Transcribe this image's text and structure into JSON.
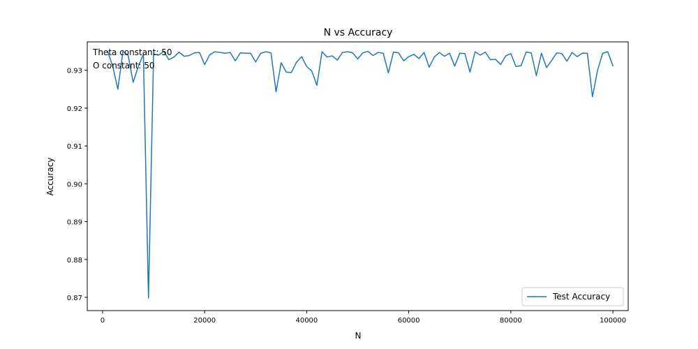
{
  "chart_data": {
    "type": "line",
    "title": "N vs Accuracy",
    "xlabel": "N",
    "ylabel": "Accuracy",
    "xlim": [
      -3000,
      103000
    ],
    "ylim": [
      0.8665,
      0.9375
    ],
    "xticks": [
      0,
      20000,
      40000,
      60000,
      80000,
      100000
    ],
    "yticks": [
      0.87,
      0.88,
      0.89,
      0.9,
      0.91,
      0.92,
      0.93
    ],
    "xtick_labels": [
      "0",
      "20000",
      "40000",
      "60000",
      "80000",
      "100000"
    ],
    "ytick_labels": [
      "0.87",
      "0.88",
      "0.89",
      "0.90",
      "0.91",
      "0.92",
      "0.93"
    ],
    "grid": false,
    "legend_position": "lower-right",
    "annotations": [
      "Theta constant: 50",
      "O constant: 50"
    ],
    "series": [
      {
        "name": "Test Accuracy",
        "color": "#1f77b4",
        "x": [
          1000,
          2000,
          3000,
          4000,
          5000,
          6000,
          7000,
          8000,
          9000,
          10000,
          11000,
          12000,
          13000,
          14000,
          15000,
          16000,
          17000,
          18000,
          19000,
          20000,
          21000,
          22000,
          23000,
          24000,
          25000,
          26000,
          27000,
          28000,
          29000,
          30000,
          31000,
          32000,
          33000,
          34000,
          35000,
          36000,
          37000,
          38000,
          39000,
          40000,
          41000,
          42000,
          43000,
          44000,
          45000,
          46000,
          47000,
          48000,
          49000,
          50000,
          51000,
          52000,
          53000,
          54000,
          55000,
          56000,
          57000,
          58000,
          59000,
          60000,
          61000,
          62000,
          63000,
          64000,
          65000,
          66000,
          67000,
          68000,
          69000,
          70000,
          71000,
          72000,
          73000,
          74000,
          75000,
          76000,
          77000,
          78000,
          79000,
          80000,
          81000,
          82000,
          83000,
          84000,
          85000,
          86000,
          87000,
          88000,
          89000,
          90000,
          91000,
          92000,
          93000,
          94000,
          95000,
          96000,
          97000,
          98000,
          99000,
          100000
        ],
        "y": [
          0.935,
          0.931,
          0.925,
          0.935,
          0.934,
          0.9268,
          0.931,
          0.9342,
          0.8698,
          0.9343,
          0.934,
          0.935,
          0.9328,
          0.9335,
          0.9348,
          0.9337,
          0.9339,
          0.9346,
          0.9347,
          0.9315,
          0.9341,
          0.9349,
          0.9347,
          0.9345,
          0.9347,
          0.9325,
          0.9346,
          0.9345,
          0.9345,
          0.9322,
          0.9345,
          0.9349,
          0.9346,
          0.9243,
          0.932,
          0.9295,
          0.9294,
          0.9321,
          0.9336,
          0.931,
          0.9298,
          0.926,
          0.9349,
          0.9335,
          0.9338,
          0.9327,
          0.9347,
          0.9349,
          0.9346,
          0.933,
          0.9346,
          0.935,
          0.9339,
          0.9347,
          0.9345,
          0.9293,
          0.9348,
          0.9346,
          0.9325,
          0.9336,
          0.9342,
          0.9331,
          0.9347,
          0.9308,
          0.9335,
          0.9347,
          0.9337,
          0.9345,
          0.9311,
          0.9345,
          0.9344,
          0.9295,
          0.9349,
          0.934,
          0.9348,
          0.9328,
          0.9329,
          0.9315,
          0.9338,
          0.9344,
          0.931,
          0.9312,
          0.9348,
          0.9346,
          0.9286,
          0.9345,
          0.9307,
          0.9326,
          0.9346,
          0.9344,
          0.9324,
          0.9347,
          0.9336,
          0.9345,
          0.9345,
          0.923,
          0.93,
          0.9345,
          0.9349,
          0.9312
        ]
      }
    ]
  }
}
